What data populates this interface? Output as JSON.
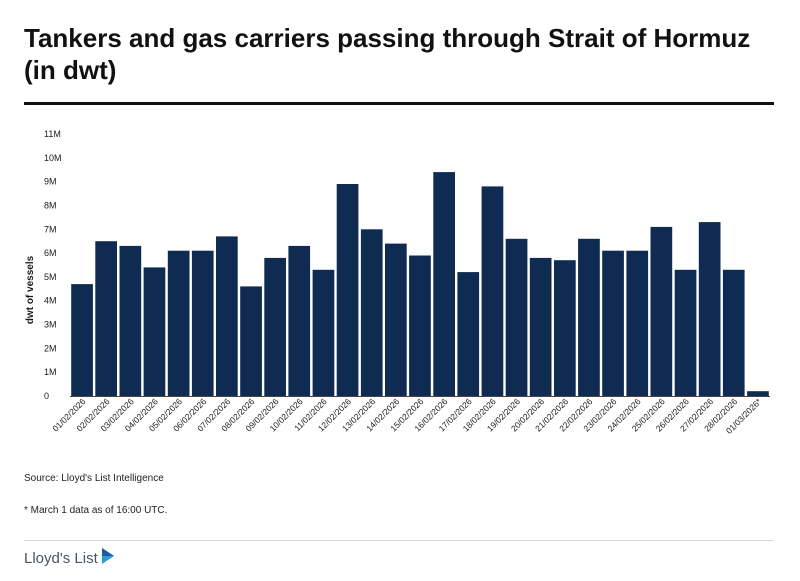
{
  "title": "Tankers and gas carriers passing through Strait of Hormuz (in dwt)",
  "source": "Source: Lloyd's List Intelligence",
  "footnote": "* March 1 data as of 16:00 UTC.",
  "logo": {
    "text": "Lloyd's List",
    "icon": "play-arrow-icon"
  },
  "colors": {
    "bar": "#0f2b52",
    "text": "#1a1a1a",
    "axis": "#444444"
  },
  "chart_data": {
    "type": "bar",
    "title": "Tankers and gas carriers passing through Strait of Hormuz (in dwt)",
    "xlabel": "",
    "ylabel": "dwt of vessels",
    "ylim": [
      0,
      11000000
    ],
    "yticks": [
      0,
      1000000,
      2000000,
      3000000,
      4000000,
      5000000,
      6000000,
      7000000,
      8000000,
      9000000,
      10000000,
      11000000
    ],
    "ytick_labels": [
      "0",
      "1M",
      "2M",
      "3M",
      "4M",
      "5M",
      "6M",
      "7M",
      "8M",
      "9M",
      "10M",
      "11M"
    ],
    "grid": false,
    "categories": [
      "01/02/2026",
      "02/02/2026",
      "03/02/2026",
      "04/02/2026",
      "05/02/2026",
      "06/02/2026",
      "07/02/2026",
      "08/02/2026",
      "09/02/2026",
      "10/02/2026",
      "11/02/2026",
      "12/02/2026",
      "13/02/2026",
      "14/02/2026",
      "15/02/2026",
      "16/02/2026",
      "17/02/2026",
      "18/02/2026",
      "19/02/2026",
      "20/02/2026",
      "21/02/2026",
      "22/02/2026",
      "23/02/2026",
      "24/02/2026",
      "25/02/2026",
      "26/02/2026",
      "27/02/2026",
      "28/02/2026",
      "01/03/2026*"
    ],
    "values": [
      4700000,
      6500000,
      6300000,
      5400000,
      6100000,
      6100000,
      6700000,
      4600000,
      5800000,
      6300000,
      5300000,
      8900000,
      7000000,
      6400000,
      5900000,
      9400000,
      5200000,
      8800000,
      6600000,
      5800000,
      5700000,
      6600000,
      6100000,
      6100000,
      7100000,
      5300000,
      7300000,
      5300000,
      200000
    ]
  }
}
